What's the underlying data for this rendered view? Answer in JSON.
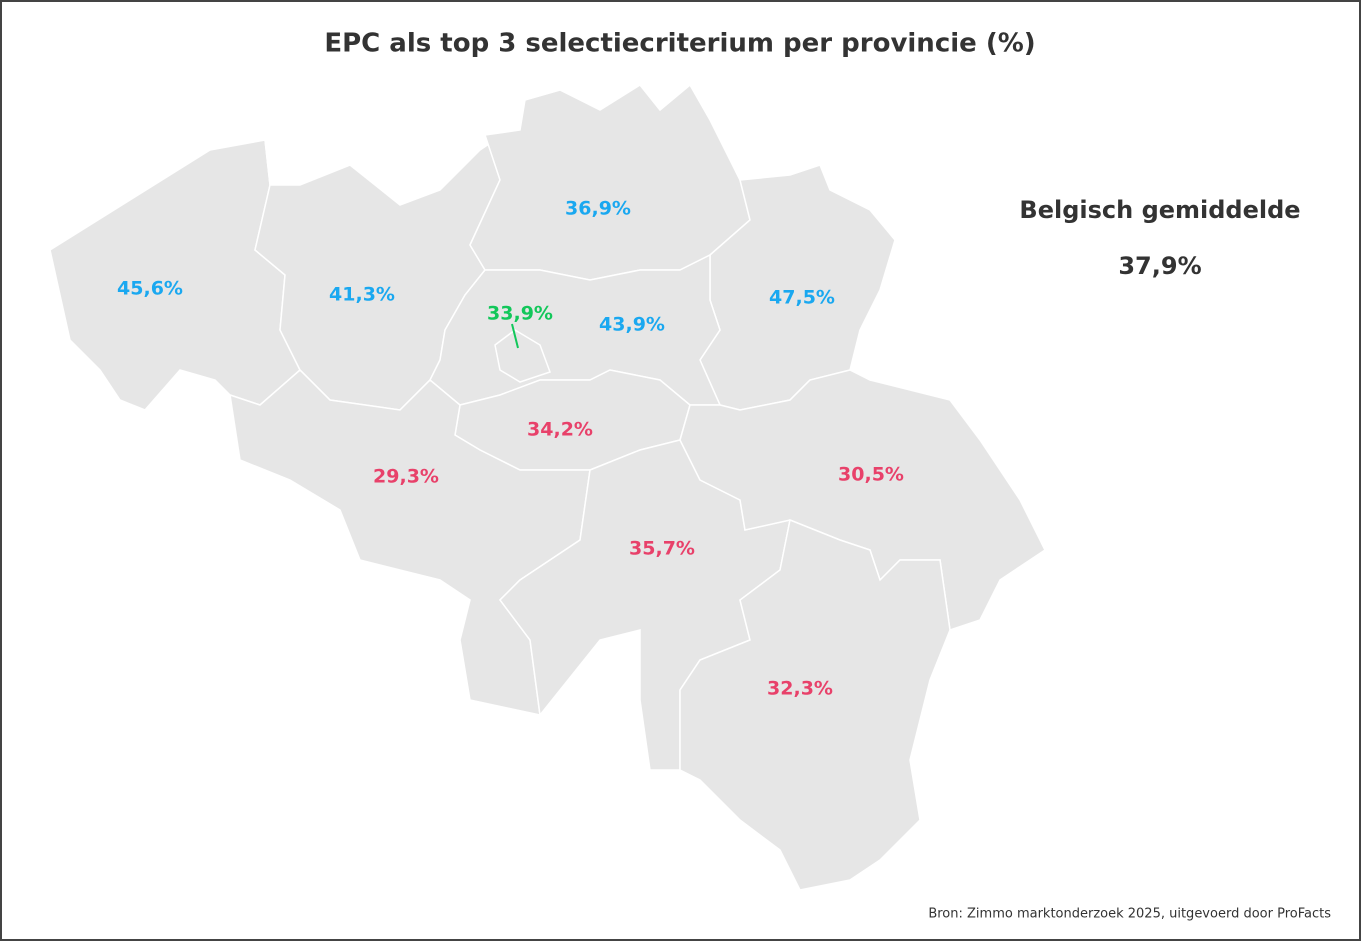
{
  "title": "EPC als top 3 selectiecriterium per provincie (%)",
  "average": {
    "label": "Belgisch gemiddelde",
    "value": "37,9%"
  },
  "regions": [
    {
      "label": "45,6%",
      "color": "#1aa8f0"
    },
    {
      "label": "41,3%",
      "color": "#1aa8f0"
    },
    {
      "label": "36,9%",
      "color": "#1aa8f0"
    },
    {
      "label": "47,5%",
      "color": "#1aa8f0"
    },
    {
      "label": "43,9%",
      "color": "#1aa8f0"
    },
    {
      "label": "33,9%",
      "color": "#12c75a"
    },
    {
      "label": "34,2%",
      "color": "#e8416a"
    },
    {
      "label": "29,3%",
      "color": "#e8416a"
    },
    {
      "label": "35,7%",
      "color": "#e8416a"
    },
    {
      "label": "30,5%",
      "color": "#e8416a"
    },
    {
      "label": "32,3%",
      "color": "#e8416a"
    }
  ],
  "source": "Bron: Zimmo marktonderzoek 2025, uitgevoerd door ProFacts"
}
